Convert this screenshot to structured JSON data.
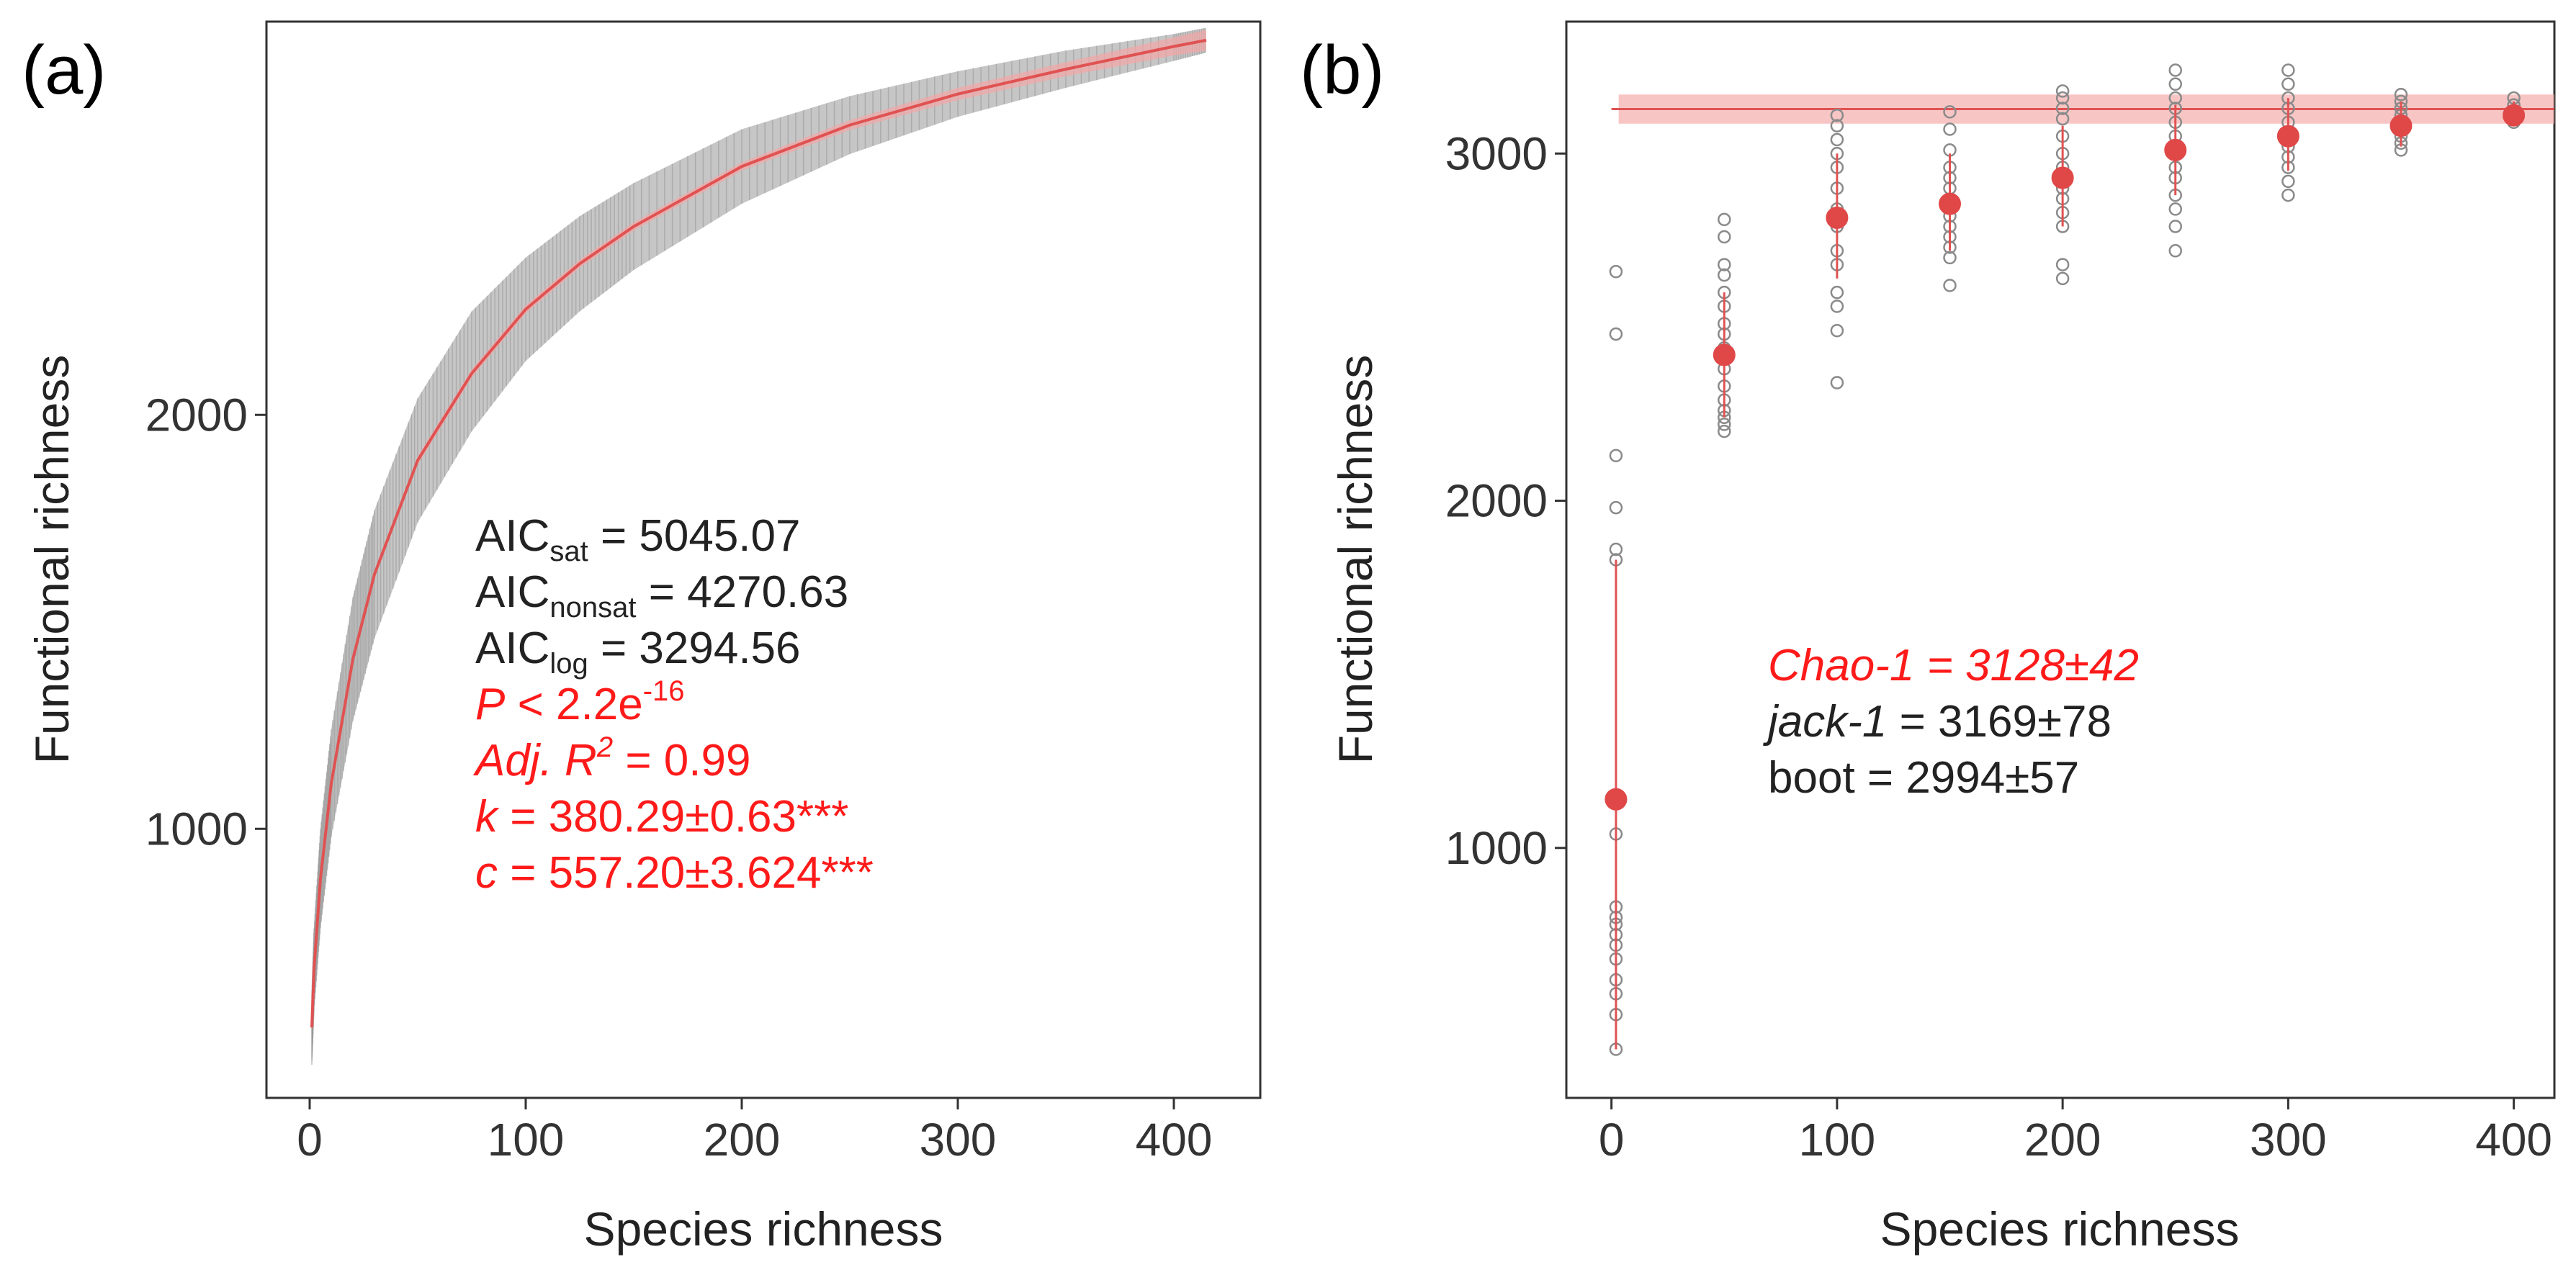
{
  "chart_data": [
    {
      "panel_label": "(a)",
      "type": "line",
      "xlabel": "Species richness",
      "ylabel": "Functional richness",
      "xlim": [
        -20,
        440
      ],
      "ylim": [
        350,
        2950
      ],
      "x_ticks": [
        0,
        100,
        200,
        300,
        400
      ],
      "y_ticks": [
        1000,
        2000
      ],
      "grid": false,
      "series": [
        {
          "style": "grey-band",
          "x": [
            1,
            2,
            5,
            10,
            20,
            30,
            50,
            75,
            100,
            125,
            150,
            200,
            250,
            300,
            350,
            400,
            415
          ],
          "lower": [
            430,
            560,
            760,
            980,
            1260,
            1460,
            1740,
            1960,
            2130,
            2250,
            2350,
            2510,
            2630,
            2720,
            2790,
            2855,
            2875
          ],
          "upper": [
            600,
            760,
            1000,
            1240,
            1560,
            1770,
            2040,
            2250,
            2380,
            2480,
            2560,
            2690,
            2770,
            2830,
            2880,
            2920,
            2935
          ]
        },
        {
          "style": "red-fit",
          "x": [
            1,
            2,
            5,
            10,
            20,
            30,
            50,
            75,
            100,
            125,
            150,
            200,
            250,
            300,
            350,
            400,
            415
          ],
          "y": [
            520,
            660,
            880,
            1110,
            1410,
            1615,
            1890,
            2100,
            2255,
            2365,
            2455,
            2600,
            2700,
            2775,
            2835,
            2890,
            2905
          ],
          "band_lower": [
            510,
            650,
            870,
            1100,
            1400,
            1605,
            1880,
            2090,
            2245,
            2355,
            2445,
            2590,
            2688,
            2760,
            2818,
            2868,
            2880
          ],
          "band_upper": [
            530,
            670,
            890,
            1120,
            1420,
            1625,
            1900,
            2110,
            2265,
            2375,
            2465,
            2610,
            2712,
            2790,
            2852,
            2912,
            2930
          ]
        }
      ],
      "annotations": [
        {
          "base": "AIC",
          "sub": "sat",
          "rest": " = 5045.07",
          "color": "#222222"
        },
        {
          "base": "AIC",
          "sub": "nonsat",
          "rest": " = 4270.63",
          "color": "#222222"
        },
        {
          "base": "AIC",
          "sub": "log",
          "rest": " = 3294.56",
          "color": "#222222"
        },
        {
          "italic": "P",
          "rest": " < 2.2e",
          "sup": "-16",
          "color": "#ff1a1a"
        },
        {
          "italic": "Adj. R",
          "sup": "2",
          "rest": " = 0.99",
          "color": "#ff1a1a"
        },
        {
          "italic": "k",
          "rest": " = 380.29±0.63***",
          "color": "#ff1a1a"
        },
        {
          "italic": "c",
          "rest": " = 557.20±3.624***",
          "color": "#ff1a1a"
        }
      ]
    },
    {
      "panel_label": "(b)",
      "type": "scatter",
      "xlabel": "Species richness",
      "ylabel": "Functional richness",
      "xlim": [
        -20,
        418
      ],
      "ylim": [
        280,
        3380
      ],
      "x_ticks": [
        0,
        100,
        200,
        300,
        400
      ],
      "y_ticks": [
        1000,
        2000,
        3000
      ],
      "grid": false,
      "reference_line": {
        "y": 3128,
        "lower": 3086,
        "upper": 3170,
        "x_from": 0,
        "x_to": 418
      },
      "means": [
        {
          "x": 2,
          "y": 1140,
          "lo": 420,
          "hi": 1830
        },
        {
          "x": 50,
          "y": 2420,
          "lo": 2240,
          "hi": 2600
        },
        {
          "x": 100,
          "y": 2815,
          "lo": 2640,
          "hi": 3000
        },
        {
          "x": 150,
          "y": 2855,
          "lo": 2720,
          "hi": 3000
        },
        {
          "x": 200,
          "y": 2930,
          "lo": 2790,
          "hi": 3080
        },
        {
          "x": 250,
          "y": 3010,
          "lo": 2880,
          "hi": 3140
        },
        {
          "x": 300,
          "y": 3050,
          "lo": 2950,
          "hi": 3160
        },
        {
          "x": 350,
          "y": 3080,
          "lo": 3020,
          "hi": 3150
        },
        {
          "x": 400,
          "y": 3110,
          "lo": 3080,
          "hi": 3150
        }
      ],
      "points": [
        {
          "x": 2,
          "y": [
            420,
            520,
            580,
            620,
            680,
            720,
            750,
            780,
            800,
            830,
            1040,
            1830,
            1860,
            1980,
            2130,
            2480,
            2660
          ]
        },
        {
          "x": 50,
          "y": [
            2200,
            2220,
            2240,
            2260,
            2290,
            2330,
            2380,
            2440,
            2480,
            2510,
            2560,
            2600,
            2650,
            2680,
            2760,
            2810
          ]
        },
        {
          "x": 100,
          "y": [
            2340,
            2490,
            2560,
            2600,
            2680,
            2720,
            2790,
            2840,
            2900,
            2960,
            3000,
            3040,
            3080,
            3110
          ]
        },
        {
          "x": 150,
          "y": [
            2620,
            2700,
            2730,
            2760,
            2790,
            2820,
            2860,
            2900,
            2930,
            2960,
            3010,
            3070,
            3120
          ]
        },
        {
          "x": 200,
          "y": [
            2640,
            2680,
            2790,
            2830,
            2870,
            2900,
            2960,
            3000,
            3050,
            3100,
            3130,
            3160,
            3180
          ]
        },
        {
          "x": 250,
          "y": [
            2720,
            2790,
            2840,
            2880,
            2930,
            2960,
            3000,
            3050,
            3090,
            3130,
            3160,
            3200,
            3240
          ]
        },
        {
          "x": 300,
          "y": [
            2880,
            2920,
            2960,
            2990,
            3020,
            3050,
            3090,
            3130,
            3160,
            3200,
            3240
          ]
        },
        {
          "x": 350,
          "y": [
            3010,
            3030,
            3050,
            3070,
            3090,
            3110,
            3130,
            3150,
            3170
          ]
        },
        {
          "x": 400,
          "y": [
            3090,
            3100,
            3110,
            3120,
            3140,
            3160
          ]
        }
      ],
      "annotations": [
        {
          "italic": "Chao-1",
          "rest": " = 3128±42",
          "italic_all": true,
          "color": "#ff1a1a"
        },
        {
          "italic": "jack-1",
          "rest": " = 3169±78",
          "color": "#222222"
        },
        {
          "plain": "boot",
          "rest": " = 2994±57",
          "color": "#222222"
        }
      ]
    }
  ]
}
